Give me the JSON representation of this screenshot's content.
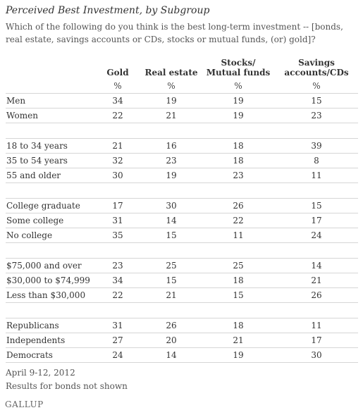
{
  "chart_data": {
    "type": "table",
    "title": "Perceived Best Investment, by Subgroup",
    "subtitle": "Which of the following do you think is the best long-term investment -- [bonds, real estate, savings accounts or CDs, stocks or mutual funds, (or) gold]?",
    "columns": [
      "Gold",
      "Real estate",
      "Stocks/\nMutual funds",
      "Savings\naccounts/CDs"
    ],
    "unit": "%",
    "groups": [
      {
        "rows": [
          {
            "label": "Men",
            "values": [
              34,
              19,
              19,
              15
            ]
          },
          {
            "label": "Women",
            "values": [
              22,
              21,
              19,
              23
            ]
          }
        ]
      },
      {
        "rows": [
          {
            "label": "18 to 34 years",
            "values": [
              21,
              16,
              18,
              39
            ]
          },
          {
            "label": "35 to 54 years",
            "values": [
              32,
              23,
              18,
              8
            ]
          },
          {
            "label": "55 and older",
            "values": [
              30,
              19,
              23,
              11
            ]
          }
        ]
      },
      {
        "rows": [
          {
            "label": "College graduate",
            "values": [
              17,
              30,
              26,
              15
            ]
          },
          {
            "label": "Some college",
            "values": [
              31,
              14,
              22,
              17
            ]
          },
          {
            "label": "No college",
            "values": [
              35,
              15,
              11,
              24
            ]
          }
        ]
      },
      {
        "rows": [
          {
            "label": "$75,000 and over",
            "values": [
              23,
              25,
              25,
              14
            ]
          },
          {
            "label": "$30,000 to $74,999",
            "values": [
              34,
              15,
              18,
              21
            ]
          },
          {
            "label": "Less than $30,000",
            "values": [
              22,
              21,
              15,
              26
            ]
          }
        ]
      },
      {
        "rows": [
          {
            "label": "Republicans",
            "values": [
              31,
              26,
              18,
              11
            ]
          },
          {
            "label": "Independents",
            "values": [
              27,
              20,
              21,
              17
            ]
          },
          {
            "label": "Democrats",
            "values": [
              24,
              14,
              19,
              30
            ]
          }
        ]
      }
    ]
  },
  "footer": {
    "date": "April 9-12, 2012",
    "note": "Results for bonds not shown"
  },
  "brand": "GALLUP"
}
